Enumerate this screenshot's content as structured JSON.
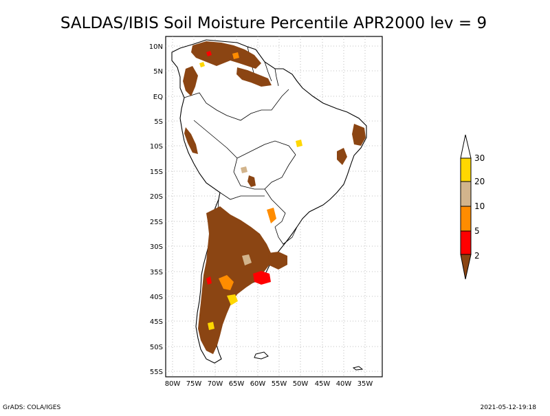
{
  "title": "SALDAS/IBIS Soil Moisture Percentile APR2000 lev = 9",
  "footer": {
    "left": "GrADS: COLA/IGES",
    "right": "2021-05-12-19:18"
  },
  "axes": {
    "lat_labels": [
      "10N",
      "5N",
      "EQ",
      "5S",
      "10S",
      "15S",
      "20S",
      "25S",
      "30S",
      "35S",
      "40S",
      "45S",
      "50S",
      "55S"
    ],
    "lon_labels": [
      "80W",
      "75W",
      "70W",
      "65W",
      "60W",
      "55W",
      "50W",
      "45W",
      "40W",
      "35W"
    ]
  },
  "colorbar": {
    "labels": [
      "2",
      "5",
      "10",
      "20",
      "30"
    ],
    "colors": {
      "lt2": "#8b4513",
      "c2_5": "#ff0000",
      "c5_10": "#ff8c00",
      "c10_20": "#d2b48c",
      "c20_30": "#ffd700",
      "gt30": "#ffffff"
    }
  },
  "map_colors": {
    "land_outline": "#000000",
    "grid": "#aaaaaa"
  }
}
